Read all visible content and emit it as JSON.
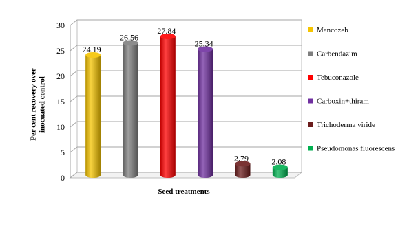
{
  "chart_data": {
    "type": "bar",
    "categories": [
      "Mancozeb",
      "Carbendazim",
      "Tebuconazole",
      "Carboxin+thiram",
      "Trichoderma viride",
      "Pseudomonas fluorescens"
    ],
    "values": [
      24.19,
      26.56,
      27.84,
      25.34,
      2.79,
      2.08
    ],
    "data_labels": [
      "24.19",
      "26.56",
      "27.84",
      "25.34",
      "2.79",
      "2.08"
    ],
    "colors": [
      "#f5c400",
      "#7f7f7f",
      "#ff0000",
      "#7030a0",
      "#6b1c1c",
      "#00b050"
    ],
    "title": "",
    "xlabel": "Seed treatments",
    "ylabel": "Per cent recovery over inocuated control",
    "ylabel_lines": [
      "Per cent recovery over",
      "inocuated control"
    ],
    "ylim": [
      0,
      30
    ],
    "yticks": [
      0,
      5,
      10,
      15,
      20,
      25,
      30
    ],
    "grid": true,
    "legend_position": "right",
    "style": "3d-cylinder"
  }
}
